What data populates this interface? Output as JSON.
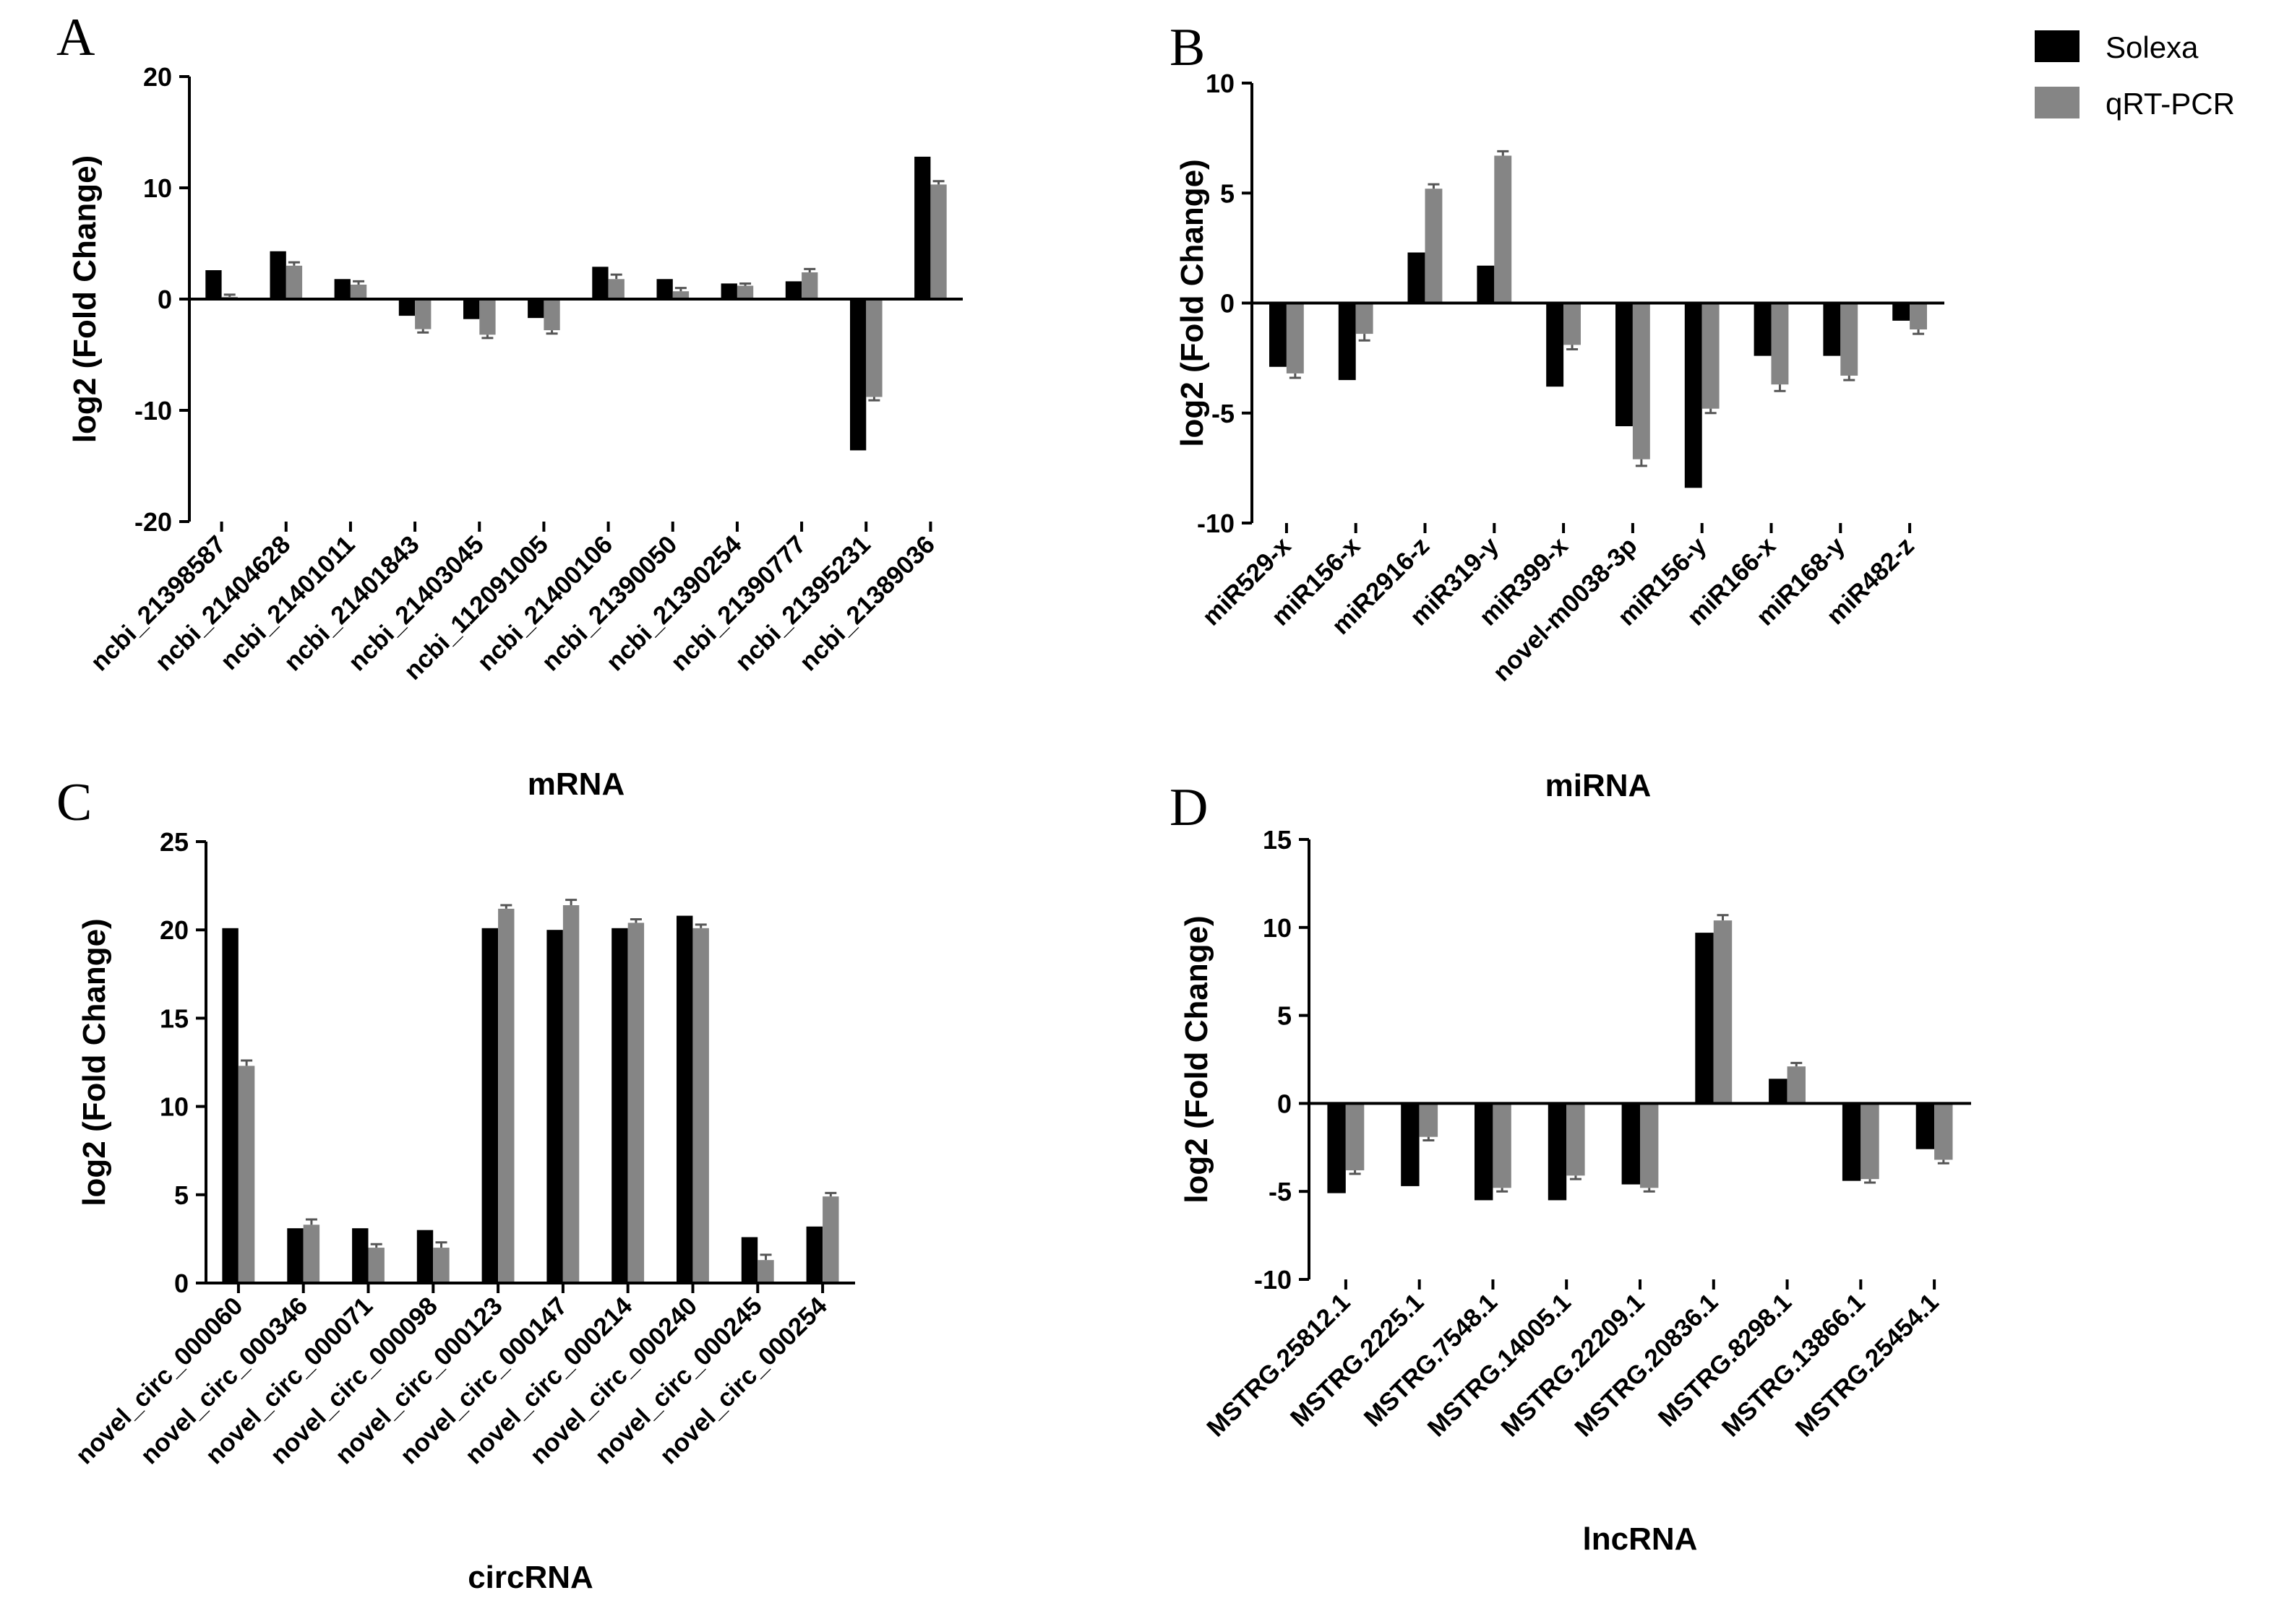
{
  "legend": {
    "items": [
      {
        "label": "Solexa",
        "color": "#000000"
      },
      {
        "label": "qRT-PCR",
        "color": "#858585"
      }
    ]
  },
  "chart_data": [
    {
      "panel": "A",
      "type": "bar",
      "xlabel": "mRNA",
      "ylabel": "log2 (Fold Change)",
      "ylim": [
        -20,
        20
      ],
      "yticks": [
        -20,
        -10,
        0,
        10,
        20
      ],
      "categories": [
        "ncbi_21398587",
        "ncbi_21404628",
        "ncbi_21401011",
        "ncbi_21401843",
        "ncbi_21403045",
        "ncbi_112091005",
        "ncbi_21400106",
        "ncbi_21390050",
        "ncbi_21390254",
        "ncbi_21390777",
        "ncbi_21395231",
        "ncbi_21389036"
      ],
      "series": [
        {
          "name": "Solexa",
          "values": [
            2.6,
            4.3,
            1.8,
            -1.5,
            -1.8,
            -1.7,
            2.9,
            1.8,
            1.4,
            1.6,
            -13.6,
            12.8
          ]
        },
        {
          "name": "qRT-PCR",
          "values": [
            0.2,
            3.0,
            1.3,
            -2.7,
            -3.2,
            -2.8,
            1.8,
            0.7,
            1.2,
            2.4,
            -8.8,
            10.3
          ],
          "errors": [
            0.2,
            0.3,
            0.3,
            0.3,
            0.3,
            0.3,
            0.4,
            0.3,
            0.2,
            0.3,
            0.3,
            0.3
          ]
        }
      ]
    },
    {
      "panel": "B",
      "type": "bar",
      "xlabel": "miRNA",
      "ylabel": "log2 (Fold Change)",
      "ylim": [
        -10,
        10
      ],
      "yticks": [
        -10,
        -5,
        0,
        5,
        10
      ],
      "categories": [
        "miR529-x",
        "miR156-x",
        "miR2916-z",
        "miR319-y",
        "miR399-x",
        "novel-m0038-3p",
        "miR156-y",
        "miR166-x",
        "miR168-y",
        "miR482-z"
      ],
      "series": [
        {
          "name": "Solexa",
          "values": [
            -2.9,
            -3.5,
            2.3,
            1.7,
            -3.8,
            -5.6,
            -8.4,
            -2.4,
            -2.4,
            -0.8
          ]
        },
        {
          "name": "qRT-PCR",
          "values": [
            -3.2,
            -1.4,
            5.2,
            6.7,
            -1.9,
            -7.1,
            -4.8,
            -3.7,
            -3.3,
            -1.2
          ],
          "errors": [
            0.2,
            0.3,
            0.2,
            0.2,
            0.2,
            0.3,
            0.2,
            0.3,
            0.2,
            0.2
          ]
        }
      ]
    },
    {
      "panel": "C",
      "type": "bar",
      "xlabel": "circRNA",
      "ylabel": "log2 (Fold Change)",
      "ylim": [
        0,
        25
      ],
      "yticks": [
        0,
        5,
        10,
        15,
        20,
        25
      ],
      "categories": [
        "novel_circ_000060",
        "novel_circ_000346",
        "novel_circ_000071",
        "novel_circ_000098",
        "novel_circ_000123",
        "novel_circ_000147",
        "novel_circ_000214",
        "novel_circ_000240",
        "novel_circ_000245",
        "novel_circ_000254"
      ],
      "series": [
        {
          "name": "Solexa",
          "values": [
            20.1,
            3.1,
            3.1,
            3.0,
            20.1,
            20.0,
            20.1,
            20.8,
            2.6,
            3.2
          ]
        },
        {
          "name": "qRT-PCR",
          "values": [
            12.3,
            3.3,
            2.0,
            2.0,
            21.2,
            21.4,
            20.4,
            20.1,
            1.3,
            4.9
          ],
          "errors": [
            0.3,
            0.3,
            0.2,
            0.3,
            0.2,
            0.3,
            0.2,
            0.2,
            0.3,
            0.2
          ]
        }
      ]
    },
    {
      "panel": "D",
      "type": "bar",
      "xlabel": "lncRNA",
      "ylabel": "log2 (Fold Change)",
      "ylim": [
        -10,
        15
      ],
      "yticks": [
        -10,
        -5,
        0,
        5,
        10,
        15
      ],
      "categories": [
        "MSTRG.25812.1",
        "MSTRG.2225.1",
        "MSTRG.7548.1",
        "MSTRG.14005.1",
        "MSTRG.22209.1",
        "MSTRG.20836.1",
        "MSTRG.8298.1",
        "MSTRG.13866.1",
        "MSTRG.25454.1"
      ],
      "series": [
        {
          "name": "Solexa",
          "values": [
            -5.1,
            -4.7,
            -5.5,
            -5.5,
            -4.6,
            9.7,
            1.4,
            -4.4,
            -2.6
          ]
        },
        {
          "name": "qRT-PCR",
          "values": [
            -3.8,
            -1.9,
            -4.8,
            -4.1,
            -4.8,
            10.4,
            2.1,
            -4.3,
            -3.2
          ],
          "errors": [
            0.2,
            0.2,
            0.2,
            0.2,
            0.2,
            0.3,
            0.2,
            0.2,
            0.2
          ]
        }
      ]
    }
  ]
}
